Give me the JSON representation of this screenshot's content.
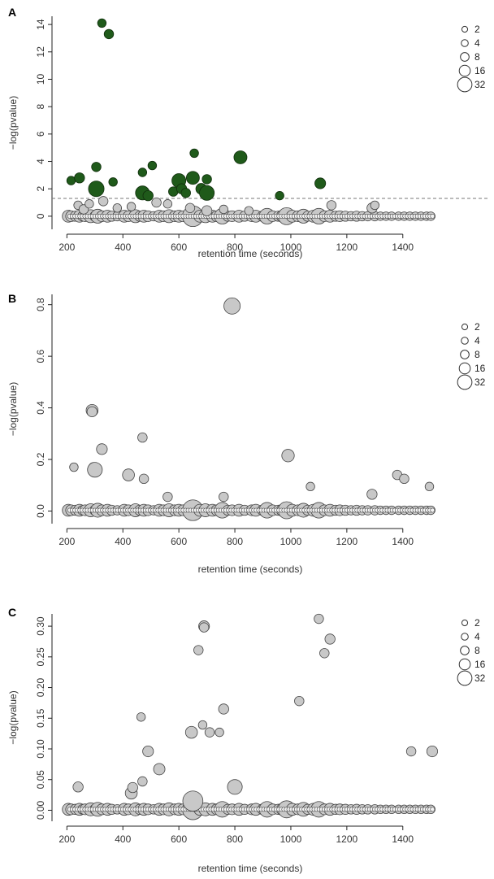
{
  "colors": {
    "significant": "#1f5a1a",
    "nonsignificant": "#c8c8c8",
    "stroke": "#444444",
    "axis": "#222222"
  },
  "chart_data": [
    {
      "type": "scatter",
      "panel": "A",
      "xlabel": "retention time (seconds)",
      "ylabel": "−log(pvalue)",
      "xlim": [
        170,
        1540
      ],
      "ylim": [
        -0.6,
        14.6
      ],
      "xticks": [
        200,
        400,
        600,
        800,
        1000,
        1200,
        1400
      ],
      "yticks": [
        0,
        2,
        4,
        6,
        8,
        10,
        12,
        14
      ],
      "threshold": 1.3,
      "legend": {
        "title": "",
        "sizes": [
          2,
          4,
          8,
          16,
          32
        ],
        "labels": [
          "2",
          "4",
          "8",
          "16",
          "32"
        ],
        "placement": "top-right"
      },
      "baseline_y": 0.0,
      "baseline_points": [
        [
          205,
          8
        ],
        [
          215,
          6
        ],
        [
          230,
          5
        ],
        [
          245,
          8
        ],
        [
          255,
          4
        ],
        [
          265,
          6
        ],
        [
          285,
          10
        ],
        [
          300,
          5
        ],
        [
          310,
          12
        ],
        [
          325,
          6
        ],
        [
          345,
          8
        ],
        [
          360,
          5
        ],
        [
          380,
          4
        ],
        [
          405,
          8
        ],
        [
          420,
          6
        ],
        [
          445,
          10
        ],
        [
          460,
          5
        ],
        [
          475,
          8
        ],
        [
          490,
          6
        ],
        [
          510,
          4
        ],
        [
          530,
          8
        ],
        [
          545,
          6
        ],
        [
          565,
          10
        ],
        [
          585,
          6
        ],
        [
          600,
          8
        ],
        [
          615,
          6
        ],
        [
          630,
          5
        ],
        [
          650,
          32
        ],
        [
          675,
          8
        ],
        [
          695,
          10
        ],
        [
          720,
          8
        ],
        [
          735,
          6
        ],
        [
          755,
          16
        ],
        [
          775,
          5
        ],
        [
          790,
          6
        ],
        [
          815,
          8
        ],
        [
          835,
          5
        ],
        [
          860,
          6
        ],
        [
          875,
          8
        ],
        [
          900,
          6
        ],
        [
          915,
          16
        ],
        [
          935,
          6
        ],
        [
          955,
          5
        ],
        [
          970,
          8
        ],
        [
          985,
          20
        ],
        [
          1005,
          8
        ],
        [
          1025,
          6
        ],
        [
          1045,
          12
        ],
        [
          1060,
          5
        ],
        [
          1080,
          8
        ],
        [
          1100,
          16
        ],
        [
          1120,
          6
        ],
        [
          1140,
          8
        ],
        [
          1160,
          5
        ],
        [
          1175,
          6
        ],
        [
          1195,
          5
        ],
        [
          1215,
          4
        ],
        [
          1235,
          5
        ],
        [
          1255,
          4
        ],
        [
          1275,
          4
        ],
        [
          1300,
          4
        ],
        [
          1320,
          3
        ],
        [
          1340,
          3
        ],
        [
          1360,
          3
        ],
        [
          1385,
          3
        ],
        [
          1405,
          3
        ],
        [
          1425,
          3
        ],
        [
          1445,
          3
        ],
        [
          1465,
          3
        ],
        [
          1485,
          3
        ],
        [
          1500,
          3
        ]
      ],
      "significant_points": [
        {
          "x": 215,
          "y": 2.6,
          "size": 3
        },
        {
          "x": 245,
          "y": 2.8,
          "size": 5
        },
        {
          "x": 305,
          "y": 2.0,
          "size": 16
        },
        {
          "x": 305,
          "y": 3.6,
          "size": 4
        },
        {
          "x": 325,
          "y": 14.1,
          "size": 3
        },
        {
          "x": 350,
          "y": 13.3,
          "size": 4
        },
        {
          "x": 365,
          "y": 2.5,
          "size": 3
        },
        {
          "x": 470,
          "y": 3.2,
          "size": 3
        },
        {
          "x": 470,
          "y": 1.7,
          "size": 12
        },
        {
          "x": 490,
          "y": 1.5,
          "size": 5
        },
        {
          "x": 505,
          "y": 3.7,
          "size": 3
        },
        {
          "x": 580,
          "y": 1.8,
          "size": 4
        },
        {
          "x": 600,
          "y": 2.6,
          "size": 12
        },
        {
          "x": 610,
          "y": 2.0,
          "size": 5
        },
        {
          "x": 625,
          "y": 1.7,
          "size": 4
        },
        {
          "x": 650,
          "y": 2.8,
          "size": 10
        },
        {
          "x": 655,
          "y": 4.6,
          "size": 3
        },
        {
          "x": 680,
          "y": 2.0,
          "size": 6
        },
        {
          "x": 700,
          "y": 2.7,
          "size": 4
        },
        {
          "x": 700,
          "y": 1.7,
          "size": 14
        },
        {
          "x": 820,
          "y": 4.3,
          "size": 10
        },
        {
          "x": 960,
          "y": 1.5,
          "size": 3
        },
        {
          "x": 1105,
          "y": 2.4,
          "size": 6
        }
      ],
      "other_points": [
        {
          "x": 240,
          "y": 0.8,
          "size": 3
        },
        {
          "x": 260,
          "y": 0.5,
          "size": 4
        },
        {
          "x": 280,
          "y": 0.9,
          "size": 3
        },
        {
          "x": 330,
          "y": 1.1,
          "size": 4
        },
        {
          "x": 380,
          "y": 0.6,
          "size": 3
        },
        {
          "x": 430,
          "y": 0.7,
          "size": 3
        },
        {
          "x": 520,
          "y": 1.0,
          "size": 4
        },
        {
          "x": 560,
          "y": 0.9,
          "size": 3
        },
        {
          "x": 640,
          "y": 0.6,
          "size": 4
        },
        {
          "x": 700,
          "y": 0.4,
          "size": 5
        },
        {
          "x": 760,
          "y": 0.5,
          "size": 3
        },
        {
          "x": 850,
          "y": 0.4,
          "size": 3
        },
        {
          "x": 1145,
          "y": 0.8,
          "size": 4
        },
        {
          "x": 1290,
          "y": 0.6,
          "size": 5
        },
        {
          "x": 1300,
          "y": 0.8,
          "size": 3
        }
      ]
    },
    {
      "type": "scatter",
      "panel": "B",
      "xlabel": "retention time (seconds)",
      "ylabel": "−log(pvalue)",
      "xlim": [
        170,
        1540
      ],
      "ylim": [
        -0.03,
        0.84
      ],
      "xticks": [
        200,
        400,
        600,
        800,
        1000,
        1200,
        1400
      ],
      "yticks": [
        0.0,
        0.2,
        0.4,
        0.6,
        0.8
      ],
      "ytick_labels": [
        "0.0",
        "0.2",
        "0.4",
        "0.6",
        "0.8"
      ],
      "legend": {
        "sizes": [
          2,
          4,
          8,
          16,
          32
        ],
        "labels": [
          "2",
          "4",
          "8",
          "16",
          "32"
        ],
        "placement": "top-right"
      },
      "baseline_y": 0.003,
      "baseline_points": [
        [
          205,
          8
        ],
        [
          215,
          6
        ],
        [
          230,
          5
        ],
        [
          245,
          8
        ],
        [
          255,
          4
        ],
        [
          265,
          6
        ],
        [
          285,
          10
        ],
        [
          300,
          5
        ],
        [
          310,
          12
        ],
        [
          325,
          6
        ],
        [
          345,
          8
        ],
        [
          360,
          5
        ],
        [
          380,
          4
        ],
        [
          405,
          8
        ],
        [
          420,
          6
        ],
        [
          445,
          10
        ],
        [
          460,
          5
        ],
        [
          475,
          8
        ],
        [
          490,
          6
        ],
        [
          510,
          4
        ],
        [
          530,
          8
        ],
        [
          545,
          6
        ],
        [
          565,
          10
        ],
        [
          585,
          6
        ],
        [
          600,
          8
        ],
        [
          615,
          6
        ],
        [
          630,
          5
        ],
        [
          650,
          32
        ],
        [
          675,
          8
        ],
        [
          695,
          10
        ],
        [
          720,
          8
        ],
        [
          735,
          6
        ],
        [
          755,
          16
        ],
        [
          775,
          5
        ],
        [
          790,
          6
        ],
        [
          815,
          8
        ],
        [
          835,
          5
        ],
        [
          860,
          6
        ],
        [
          875,
          8
        ],
        [
          900,
          6
        ],
        [
          915,
          16
        ],
        [
          935,
          6
        ],
        [
          955,
          5
        ],
        [
          970,
          8
        ],
        [
          985,
          20
        ],
        [
          1005,
          8
        ],
        [
          1025,
          6
        ],
        [
          1045,
          12
        ],
        [
          1060,
          5
        ],
        [
          1080,
          8
        ],
        [
          1100,
          16
        ],
        [
          1120,
          6
        ],
        [
          1140,
          8
        ],
        [
          1160,
          5
        ],
        [
          1175,
          6
        ],
        [
          1195,
          5
        ],
        [
          1215,
          4
        ],
        [
          1235,
          5
        ],
        [
          1255,
          4
        ],
        [
          1275,
          4
        ],
        [
          1300,
          4
        ],
        [
          1320,
          3
        ],
        [
          1340,
          3
        ],
        [
          1360,
          3
        ],
        [
          1385,
          3
        ],
        [
          1405,
          3
        ],
        [
          1425,
          3
        ],
        [
          1445,
          3
        ],
        [
          1465,
          3
        ],
        [
          1485,
          3
        ],
        [
          1500,
          3
        ]
      ],
      "other_points": [
        {
          "x": 225,
          "y": 0.17,
          "size": 3
        },
        {
          "x": 290,
          "y": 0.39,
          "size": 8
        },
        {
          "x": 290,
          "y": 0.385,
          "size": 5
        },
        {
          "x": 295,
          "y": 0.17,
          "size": 4
        },
        {
          "x": 300,
          "y": 0.16,
          "size": 14
        },
        {
          "x": 325,
          "y": 0.24,
          "size": 6
        },
        {
          "x": 420,
          "y": 0.14,
          "size": 8
        },
        {
          "x": 470,
          "y": 0.285,
          "size": 4
        },
        {
          "x": 475,
          "y": 0.125,
          "size": 4
        },
        {
          "x": 560,
          "y": 0.055,
          "size": 4
        },
        {
          "x": 760,
          "y": 0.055,
          "size": 4
        },
        {
          "x": 790,
          "y": 0.795,
          "size": 18
        },
        {
          "x": 990,
          "y": 0.215,
          "size": 9
        },
        {
          "x": 1070,
          "y": 0.095,
          "size": 3
        },
        {
          "x": 1290,
          "y": 0.065,
          "size": 5
        },
        {
          "x": 1380,
          "y": 0.14,
          "size": 4
        },
        {
          "x": 1405,
          "y": 0.125,
          "size": 4
        },
        {
          "x": 1495,
          "y": 0.095,
          "size": 3
        }
      ]
    },
    {
      "type": "scatter",
      "panel": "C",
      "xlabel": "retention time (seconds)",
      "ylabel": "−log(pvalue)",
      "xlim": [
        170,
        1540
      ],
      "ylim": [
        -0.01,
        0.32
      ],
      "xticks": [
        200,
        400,
        600,
        800,
        1000,
        1200,
        1400
      ],
      "yticks": [
        0.0,
        0.05,
        0.1,
        0.15,
        0.2,
        0.25,
        0.3
      ],
      "ytick_labels": [
        "0.00",
        "0.05",
        "0.10",
        "0.15",
        "0.20",
        "0.25",
        "0.30"
      ],
      "legend": {
        "sizes": [
          2,
          4,
          8,
          16,
          32
        ],
        "labels": [
          "2",
          "4",
          "8",
          "16",
          "32"
        ],
        "placement": "top-right"
      },
      "baseline_y": 0.0015,
      "baseline_points": [
        [
          205,
          8
        ],
        [
          215,
          6
        ],
        [
          230,
          5
        ],
        [
          245,
          8
        ],
        [
          255,
          4
        ],
        [
          265,
          6
        ],
        [
          285,
          10
        ],
        [
          300,
          5
        ],
        [
          310,
          12
        ],
        [
          325,
          6
        ],
        [
          345,
          8
        ],
        [
          360,
          5
        ],
        [
          380,
          4
        ],
        [
          405,
          8
        ],
        [
          420,
          6
        ],
        [
          445,
          10
        ],
        [
          460,
          5
        ],
        [
          475,
          8
        ],
        [
          490,
          6
        ],
        [
          510,
          4
        ],
        [
          530,
          8
        ],
        [
          545,
          6
        ],
        [
          565,
          10
        ],
        [
          585,
          6
        ],
        [
          600,
          8
        ],
        [
          615,
          6
        ],
        [
          630,
          5
        ],
        [
          650,
          32
        ],
        [
          675,
          8
        ],
        [
          695,
          10
        ],
        [
          720,
          8
        ],
        [
          735,
          6
        ],
        [
          755,
          16
        ],
        [
          775,
          5
        ],
        [
          790,
          6
        ],
        [
          815,
          8
        ],
        [
          835,
          5
        ],
        [
          860,
          6
        ],
        [
          875,
          8
        ],
        [
          900,
          6
        ],
        [
          915,
          16
        ],
        [
          935,
          6
        ],
        [
          955,
          5
        ],
        [
          970,
          8
        ],
        [
          985,
          20
        ],
        [
          1005,
          8
        ],
        [
          1025,
          6
        ],
        [
          1045,
          12
        ],
        [
          1060,
          5
        ],
        [
          1080,
          8
        ],
        [
          1100,
          16
        ],
        [
          1120,
          6
        ],
        [
          1140,
          8
        ],
        [
          1160,
          5
        ],
        [
          1175,
          6
        ],
        [
          1195,
          5
        ],
        [
          1215,
          4
        ],
        [
          1235,
          5
        ],
        [
          1255,
          4
        ],
        [
          1275,
          4
        ],
        [
          1300,
          4
        ],
        [
          1320,
          3
        ],
        [
          1340,
          3
        ],
        [
          1360,
          3
        ],
        [
          1385,
          3
        ],
        [
          1405,
          3
        ],
        [
          1425,
          3
        ],
        [
          1445,
          3
        ],
        [
          1465,
          3
        ],
        [
          1485,
          3
        ],
        [
          1500,
          3
        ]
      ],
      "other_points": [
        {
          "x": 240,
          "y": 0.038,
          "size": 5
        },
        {
          "x": 430,
          "y": 0.028,
          "size": 8
        },
        {
          "x": 435,
          "y": 0.037,
          "size": 5
        },
        {
          "x": 465,
          "y": 0.152,
          "size": 3
        },
        {
          "x": 470,
          "y": 0.047,
          "size": 4
        },
        {
          "x": 490,
          "y": 0.096,
          "size": 6
        },
        {
          "x": 530,
          "y": 0.067,
          "size": 7
        },
        {
          "x": 645,
          "y": 0.127,
          "size": 8
        },
        {
          "x": 650,
          "y": 0.015,
          "size": 30
        },
        {
          "x": 670,
          "y": 0.261,
          "size": 4
        },
        {
          "x": 685,
          "y": 0.139,
          "size": 3
        },
        {
          "x": 690,
          "y": 0.3,
          "size": 6
        },
        {
          "x": 690,
          "y": 0.298,
          "size": 4
        },
        {
          "x": 710,
          "y": 0.127,
          "size": 4
        },
        {
          "x": 745,
          "y": 0.127,
          "size": 3
        },
        {
          "x": 760,
          "y": 0.165,
          "size": 5
        },
        {
          "x": 800,
          "y": 0.038,
          "size": 14
        },
        {
          "x": 1030,
          "y": 0.178,
          "size": 4
        },
        {
          "x": 1100,
          "y": 0.312,
          "size": 4
        },
        {
          "x": 1120,
          "y": 0.256,
          "size": 4
        },
        {
          "x": 1140,
          "y": 0.279,
          "size": 5
        },
        {
          "x": 1430,
          "y": 0.096,
          "size": 4
        },
        {
          "x": 1505,
          "y": 0.096,
          "size": 6
        }
      ]
    }
  ]
}
